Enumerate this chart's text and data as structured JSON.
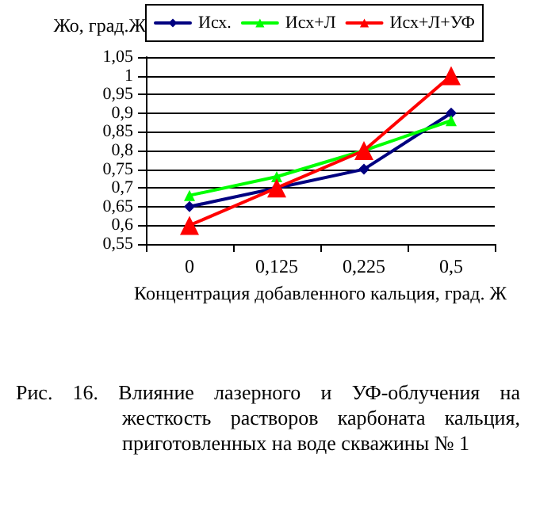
{
  "chart_data": {
    "type": "line",
    "ylabel": "Жо, град.Ж",
    "xlabel": "Концентрация добавленного кальция, град. Ж",
    "categories": [
      "0",
      "0,125",
      "0,225",
      "0,5"
    ],
    "series": [
      {
        "name": "Исх.",
        "color": "#000080",
        "marker": "diamond",
        "values": [
          0.65,
          0.7,
          0.75,
          0.9
        ]
      },
      {
        "name": "Исх+Л",
        "color": "#00ff00",
        "marker": "triangle",
        "values": [
          0.68,
          0.73,
          0.8,
          0.88
        ]
      },
      {
        "name": "Исх+Л+УФ",
        "color": "#ff0000",
        "marker": "triangle",
        "values": [
          0.6,
          0.7,
          0.8,
          1.0
        ]
      }
    ],
    "ylim": [
      0.55,
      1.05
    ],
    "yticks": [
      {
        "value": 0.55,
        "label": "0,55"
      },
      {
        "value": 0.6,
        "label": "0,6"
      },
      {
        "value": 0.65,
        "label": "0,65"
      },
      {
        "value": 0.7,
        "label": "0,7"
      },
      {
        "value": 0.75,
        "label": "0,75"
      },
      {
        "value": 0.8,
        "label": "0,8"
      },
      {
        "value": 0.85,
        "label": "0,85"
      },
      {
        "value": 0.9,
        "label": "0,9"
      },
      {
        "value": 0.95,
        "label": "0,95"
      },
      {
        "value": 1,
        "label": "1"
      },
      {
        "value": 1.05,
        "label": "1,05"
      }
    ],
    "grid": "y",
    "legend": "top",
    "line_style": "solid",
    "annotations": [
      "Рис. 16. Влияние лазерного и УФ-облучения на жесткость растворов карбоната кальция, приготовленных на  воде скважины № 1"
    ]
  }
}
